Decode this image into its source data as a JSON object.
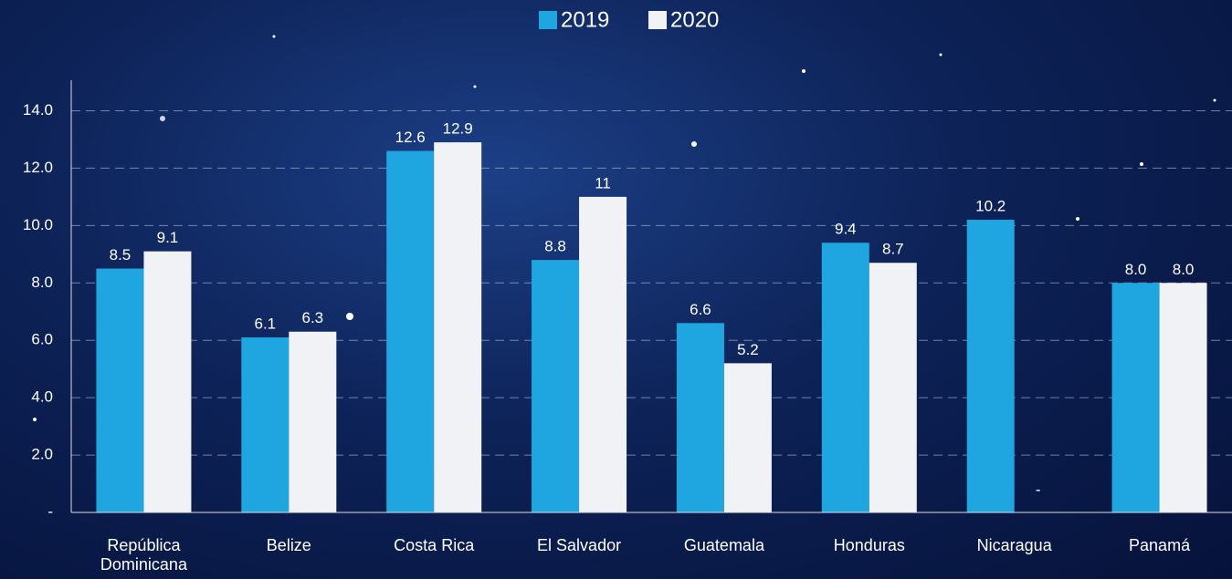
{
  "chart_data": {
    "type": "bar",
    "categories": [
      "República Dominicana",
      "Belize",
      "Costa Rica",
      "El Salvador",
      "Guatemala",
      "Honduras",
      "Nicaragua",
      "Panamá"
    ],
    "series": [
      {
        "name": "2019",
        "color": "#1fa6e0",
        "values": [
          8.5,
          6.1,
          12.6,
          8.8,
          6.6,
          9.4,
          10.2,
          8.0
        ],
        "value_labels": [
          "8.5",
          "6.1",
          "12.6",
          "8.8",
          "6.6",
          "9.4",
          "10.2",
          "8.0"
        ]
      },
      {
        "name": "2020",
        "color": "#f1f2f5",
        "values": [
          9.1,
          6.3,
          12.9,
          11,
          5.2,
          8.7,
          null,
          8.0
        ],
        "value_labels": [
          "9.1",
          "6.3",
          "12.9",
          "11",
          "5.2",
          "8.7",
          "-",
          "8.0"
        ]
      }
    ],
    "ylim": [
      0,
      15
    ],
    "yticks": [
      {
        "value": 0,
        "label": "-"
      },
      {
        "value": 2,
        "label": "2.0"
      },
      {
        "value": 4,
        "label": "4.0"
      },
      {
        "value": 6,
        "label": "6.0"
      },
      {
        "value": 8,
        "label": "8.0"
      },
      {
        "value": 10,
        "label": "10.0"
      },
      {
        "value": 12,
        "label": "12.0"
      },
      {
        "value": 14,
        "label": "14.0"
      }
    ],
    "grid": true,
    "legend": "top"
  }
}
